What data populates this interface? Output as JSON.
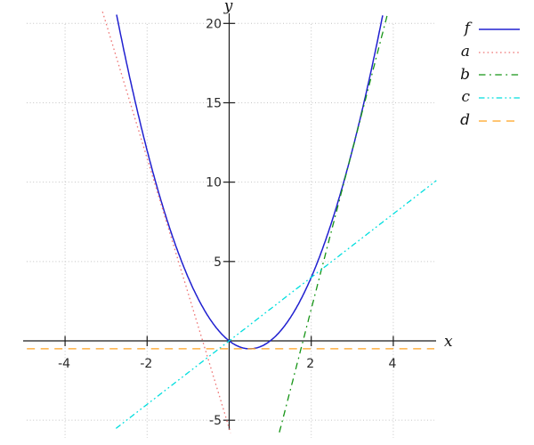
{
  "figure": {
    "x_axis_label": "x",
    "y_axis_label": "y"
  },
  "chart_data": {
    "type": "line",
    "title": "",
    "xlabel": "x",
    "ylabel": "y",
    "xlim": [
      -5.02,
      5.05
    ],
    "ylim": [
      -5.9,
      20.75
    ],
    "x_ticks": [
      -4,
      -2,
      2,
      4
    ],
    "y_ticks": [
      20,
      15,
      10,
      5,
      -5
    ],
    "grid": "dotted",
    "legend_position": "outside-top-right",
    "series": [
      {
        "name": "f",
        "kind": "parabola",
        "equation": "f(x) = 2x^2 - 2x",
        "coeffs": [
          2,
          -2,
          0
        ],
        "style": "solid",
        "color": "#2020d0",
        "key_points": {
          "roots": [
            0,
            1
          ],
          "vertex": [
            0.5,
            -0.5
          ]
        }
      },
      {
        "name": "a",
        "kind": "line",
        "equation": "a(x) = -8.5x - 5.5",
        "coeffs": [
          0,
          -8.5,
          -5.5
        ],
        "style": "dotted",
        "color": "#ee7575"
      },
      {
        "name": "b",
        "kind": "line",
        "equation": "b(x) = 10x - 18",
        "coeffs": [
          0,
          10,
          -18
        ],
        "style": "dashdot",
        "color": "#159415",
        "key_points": {
          "tangent_to_f_at": [
            3,
            12
          ]
        }
      },
      {
        "name": "c",
        "kind": "line",
        "equation": "c(x) = 2x",
        "coeffs": [
          0,
          2,
          0
        ],
        "style": "dashdotdot",
        "color": "#00dede",
        "domain": [
          -2.76,
          5.05
        ]
      },
      {
        "name": "d",
        "kind": "line",
        "equation": "d(x) = -0.5",
        "coeffs": [
          0,
          0,
          -0.5
        ],
        "style": "dashed",
        "color": "#ffa21f",
        "domain": [
          -4.93,
          5.0
        ],
        "key_points": {
          "tangent_to_f_at": [
            0.5,
            -0.5
          ]
        }
      }
    ]
  }
}
